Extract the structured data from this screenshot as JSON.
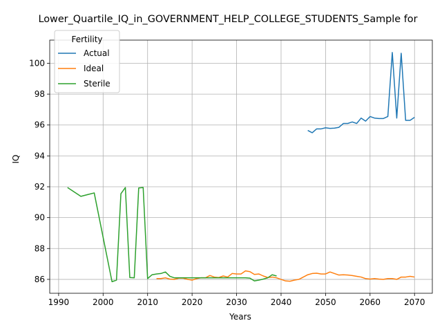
{
  "chart_data": {
    "type": "line",
    "title": "Lower_Quartile_IQ_in_GOVERNMENT_HELP_COLLEGE_STUDENTS_Sample for",
    "xlabel": "Years",
    "ylabel": "IQ",
    "xlim": [
      1988,
      2074
    ],
    "ylim": [
      85.1,
      101.5
    ],
    "xticks": [
      1990,
      2000,
      2010,
      2020,
      2030,
      2040,
      2050,
      2060,
      2070
    ],
    "yticks": [
      86,
      88,
      90,
      92,
      94,
      96,
      98,
      100
    ],
    "grid": true,
    "legend": {
      "title": "Fertility",
      "position": "upper-left"
    },
    "series": [
      {
        "name": "Actual",
        "color": "#1f77b4",
        "x": [
          2046,
          2047,
          2048,
          2049,
          2050,
          2051,
          2052,
          2053,
          2054,
          2055,
          2056,
          2057,
          2058,
          2059,
          2060,
          2061,
          2062,
          2063,
          2064,
          2065,
          2066,
          2067,
          2068,
          2069,
          2070
        ],
        "y": [
          95.65,
          95.5,
          95.75,
          95.75,
          95.82,
          95.78,
          95.8,
          95.85,
          96.1,
          96.1,
          96.2,
          96.1,
          96.45,
          96.25,
          96.55,
          96.45,
          96.42,
          96.42,
          96.55,
          100.7,
          96.45,
          100.65,
          96.3,
          96.3,
          96.5
        ]
      },
      {
        "name": "Ideal",
        "color": "#ff7f0e",
        "x": [
          2012,
          2013,
          2014,
          2015,
          2016,
          2017,
          2018,
          2019,
          2020,
          2021,
          2022,
          2023,
          2024,
          2025,
          2026,
          2027,
          2028,
          2029,
          2030,
          2031,
          2032,
          2033,
          2034,
          2035,
          2036,
          2037,
          2038,
          2039,
          2040,
          2041,
          2042,
          2043,
          2044,
          2045,
          2046,
          2047,
          2048,
          2049,
          2050,
          2051,
          2052,
          2053,
          2054,
          2055,
          2056,
          2057,
          2058,
          2059,
          2060,
          2061,
          2062,
          2063,
          2064,
          2065,
          2066,
          2067,
          2068,
          2069,
          2070
        ],
        "y": [
          86.05,
          86.05,
          86.1,
          86.02,
          86.0,
          86.08,
          86.08,
          86.0,
          85.95,
          86.05,
          86.1,
          86.1,
          86.25,
          86.15,
          86.12,
          86.22,
          86.15,
          86.38,
          86.35,
          86.35,
          86.55,
          86.5,
          86.32,
          86.35,
          86.22,
          86.12,
          86.15,
          86.1,
          86.0,
          85.9,
          85.88,
          85.95,
          86.0,
          86.15,
          86.3,
          86.38,
          86.4,
          86.35,
          86.35,
          86.48,
          86.38,
          86.28,
          86.3,
          86.28,
          86.25,
          86.2,
          86.15,
          86.05,
          86.02,
          86.05,
          86.02,
          86.0,
          86.05,
          86.05,
          86.0,
          86.15,
          86.15,
          86.2,
          86.15
        ]
      },
      {
        "name": "Sterile",
        "color": "#2ca02c",
        "x": [
          1992,
          1995,
          1998,
          2002,
          2003,
          2004,
          2005,
          2006,
          2007,
          2008,
          2009,
          2010,
          2011,
          2012,
          2013,
          2014,
          2015,
          2016,
          2017,
          2018,
          2019,
          2020,
          2021,
          2022,
          2023,
          2024,
          2025,
          2026,
          2027,
          2028,
          2029,
          2030,
          2031,
          2032,
          2033,
          2034,
          2035,
          2036,
          2037,
          2038,
          2039
        ],
        "y": [
          91.95,
          91.38,
          91.6,
          85.85,
          85.95,
          91.55,
          91.95,
          86.12,
          86.1,
          91.92,
          91.95,
          86.05,
          86.3,
          86.35,
          86.38,
          86.48,
          86.2,
          86.1,
          86.1,
          86.1,
          86.1,
          86.1,
          86.1,
          86.1,
          86.1,
          86.1,
          86.1,
          86.1,
          86.1,
          86.1,
          86.1,
          86.1,
          86.1,
          86.1,
          86.08,
          85.9,
          85.95,
          86.02,
          86.1,
          86.3,
          86.22
        ]
      }
    ]
  }
}
